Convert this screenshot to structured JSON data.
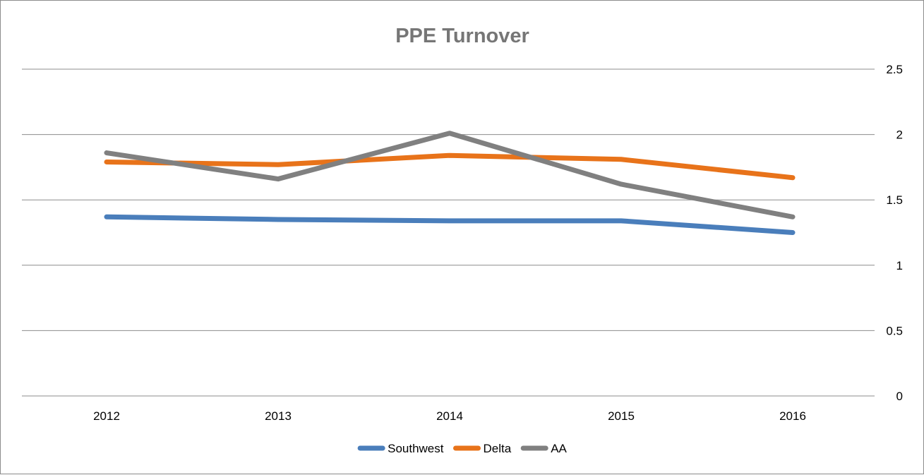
{
  "chart_data": {
    "type": "line",
    "title": "PPE Turnover",
    "xlabel": "",
    "ylabel": "",
    "categories": [
      "2012",
      "2013",
      "2014",
      "2015",
      "2016"
    ],
    "ylim": [
      0,
      2.5
    ],
    "yticks": [
      "0",
      "0.5",
      "1",
      "1.5",
      "2",
      "2.5"
    ],
    "y_axis_side": "right",
    "grid": true,
    "legend_position": "bottom",
    "series": [
      {
        "name": "Southwest",
        "color": "#4a7ebb",
        "values": [
          1.37,
          1.35,
          1.34,
          1.34,
          1.25
        ]
      },
      {
        "name": "Delta",
        "color": "#e8731a",
        "values": [
          1.79,
          1.77,
          1.84,
          1.81,
          1.67
        ]
      },
      {
        "name": "AA",
        "color": "#808080",
        "values": [
          1.86,
          1.66,
          2.01,
          1.62,
          1.37
        ]
      }
    ]
  }
}
